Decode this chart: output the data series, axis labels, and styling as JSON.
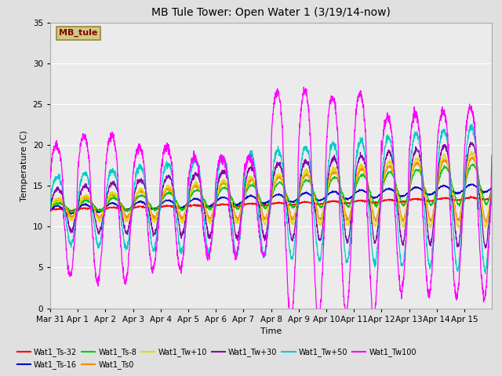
{
  "title": "MB Tule Tower: Open Water 1 (3/19/14-now)",
  "xlabel": "Time",
  "ylabel": "Temperature (C)",
  "ylim": [
    0,
    35
  ],
  "yticks": [
    0,
    5,
    10,
    15,
    20,
    25,
    30,
    35
  ],
  "x_tick_labels": [
    "Mar 31",
    "Apr 1",
    "Apr 2",
    "Apr 3",
    "Apr 4",
    "Apr 5",
    "Apr 6",
    "Apr 7",
    "Apr 8",
    "Apr 9",
    "Apr 10",
    "Apr 11",
    "Apr 12",
    "Apr 13",
    "Apr 14",
    "Apr 15"
  ],
  "series_colors": {
    "Wat1_Ts-32": "#ff0000",
    "Wat1_Ts-16": "#0000cc",
    "Wat1_Ts-8": "#00cc00",
    "Wat1_Ts0": "#ff8800",
    "Wat1_Tw+10": "#dddd00",
    "Wat1_Tw+30": "#8800aa",
    "Wat1_Tw+50": "#00cccc",
    "Wat1_Tw100": "#ff00ff"
  },
  "bg_color": "#e0e0e0",
  "plot_bg": "#ebebeb",
  "legend_box_color": "#cccc88",
  "legend_box_text": "MB_tule",
  "legend_box_text_color": "#880000"
}
